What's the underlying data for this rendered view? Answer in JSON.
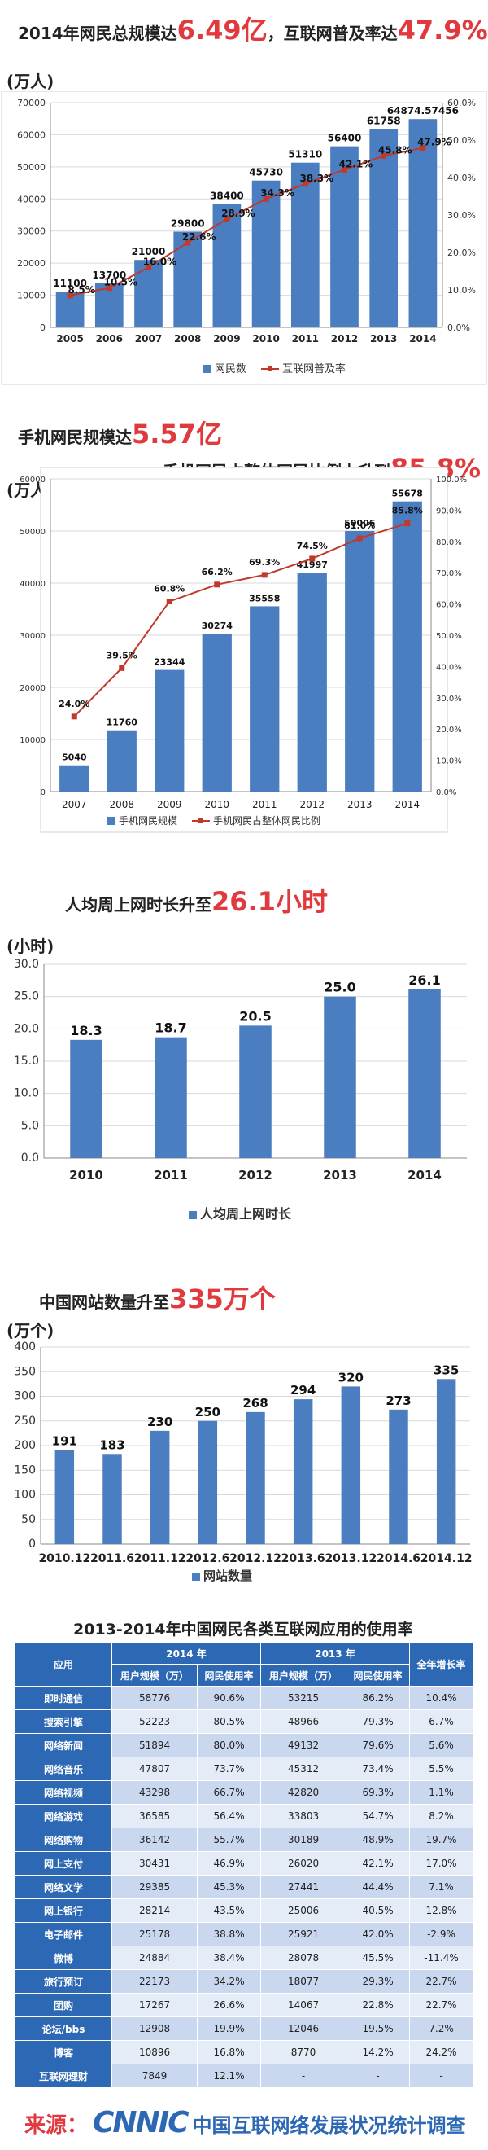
{
  "sections": [
    {
      "title_prefix": "2014年网民总规模达",
      "title_hl1": "6.49亿",
      "title_mid": "，互联网普及率达",
      "title_hl2": "47.9%",
      "unit": "(万人)"
    },
    {
      "title_prefix": "手机网民规模达",
      "title_hl1": "5.57亿",
      "subtitle_prefix": "手机网民占整体网民比例上升到",
      "subtitle_hl": "85.8%",
      "unit": "(万人)"
    },
    {
      "title_prefix": "人均周上网时长升至",
      "title_hl1": "26.1小时",
      "unit": "(小时)"
    },
    {
      "title_prefix": "中国网站数量升至",
      "title_hl1": "335万个",
      "unit": "(万个)"
    }
  ],
  "chart_data": [
    {
      "type": "bar+line",
      "categories": [
        "2005",
        "2006",
        "2007",
        "2008",
        "2009",
        "2010",
        "2011",
        "2012",
        "2013",
        "2014"
      ],
      "series": [
        {
          "name": "网民数",
          "type": "bar",
          "values": [
            11100,
            13700,
            21000,
            29800,
            38400,
            45730,
            51310,
            56400,
            61758,
            64874.57456
          ],
          "labels": [
            "11100",
            "13700",
            "21000",
            "29800",
            "38400",
            "45730",
            "51310",
            "56400",
            "61758",
            "64874.57456"
          ]
        },
        {
          "name": "互联网普及率",
          "type": "line",
          "values": [
            8.5,
            10.5,
            16.0,
            22.6,
            28.9,
            34.3,
            38.3,
            42.1,
            45.8,
            47.9
          ],
          "labels": [
            "8.5%",
            "10.5%",
            "16.0%",
            "22.6%",
            "28.9%",
            "34.3%",
            "38.3%",
            "42.1%",
            "45.8%",
            "47.9%"
          ]
        }
      ],
      "yticks": [
        "0",
        "10000",
        "20000",
        "30000",
        "40000",
        "50000",
        "60000",
        "70000"
      ],
      "ylim": [
        0,
        70000
      ],
      "y2ticks": [
        "0.0%",
        "10.0%",
        "20.0%",
        "30.0%",
        "40.0%",
        "50.0%",
        "60.0%"
      ],
      "y2lim": [
        0,
        60
      ],
      "grid": true,
      "legend_position": "bottom"
    },
    {
      "type": "bar+line",
      "categories": [
        "2007",
        "2008",
        "2009",
        "2010",
        "2011",
        "2012",
        "2013",
        "2014"
      ],
      "series": [
        {
          "name": "手机网民规模",
          "type": "bar",
          "values": [
            5040,
            11760,
            23344,
            30274,
            35558,
            41997,
            50006,
            55678
          ],
          "labels": [
            "5040",
            "11760",
            "23344",
            "30274",
            "35558",
            "41997",
            "50006",
            "55678"
          ]
        },
        {
          "name": "手机网民占整体网民比例",
          "type": "line",
          "values": [
            24.0,
            39.5,
            60.8,
            66.2,
            69.3,
            74.5,
            81.0,
            85.8
          ],
          "labels": [
            "24.0%",
            "39.5%",
            "60.8%",
            "66.2%",
            "69.3%",
            "74.5%",
            "81.0%",
            "85.8%"
          ]
        }
      ],
      "yticks": [
        "0",
        "10000",
        "20000",
        "30000",
        "40000",
        "50000",
        "60000"
      ],
      "ylim": [
        0,
        60000
      ],
      "y2ticks": [
        "0.0%",
        "10.0%",
        "20.0%",
        "30.0%",
        "40.0%",
        "50.0%",
        "60.0%",
        "70.0%",
        "80.0%",
        "90.0%",
        "100.0%"
      ],
      "y2lim": [
        0,
        100
      ],
      "grid": true,
      "legend_position": "bottom"
    },
    {
      "type": "bar",
      "categories": [
        "2010",
        "2011",
        "2012",
        "2013",
        "2014"
      ],
      "series": [
        {
          "name": "人均周上网时长",
          "type": "bar",
          "values": [
            18.3,
            18.7,
            20.5,
            25.0,
            26.1
          ],
          "labels": [
            "18.3",
            "18.7",
            "20.5",
            "25.0",
            "26.1"
          ]
        }
      ],
      "yticks": [
        "0.0",
        "5.0",
        "10.0",
        "15.0",
        "20.0",
        "25.0",
        "30.0"
      ],
      "ylim": [
        0,
        30
      ],
      "grid": true,
      "legend_position": "bottom"
    },
    {
      "type": "bar",
      "categories": [
        "2010.12",
        "2011.6",
        "2011.12",
        "2012.6",
        "2012.12",
        "2013.6",
        "2013.12",
        "2014.6",
        "2014.12"
      ],
      "series": [
        {
          "name": "网站数量",
          "type": "bar",
          "values": [
            191,
            183,
            230,
            250,
            268,
            294,
            320,
            273,
            335
          ],
          "labels": [
            "191",
            "183",
            "230",
            "250",
            "268",
            "294",
            "320",
            "273",
            "335"
          ]
        }
      ],
      "yticks": [
        "0",
        "50",
        "100",
        "150",
        "200",
        "250",
        "300",
        "350",
        "400"
      ],
      "ylim": [
        0,
        400
      ],
      "grid": true,
      "legend_position": "bottom"
    },
    {
      "type": "table",
      "title": "2013-2014年中国网民各类互联网应用的使用率",
      "group_headers": [
        "2014 年",
        "2013 年"
      ],
      "columns": [
        "应用",
        "用户规模（万）",
        "网民使用率",
        "用户规模（万）",
        "网民使用率",
        "全年增长率"
      ],
      "rows": [
        [
          "即时通信",
          "58776",
          "90.6%",
          "53215",
          "86.2%",
          "10.4%"
        ],
        [
          "搜索引擎",
          "52223",
          "80.5%",
          "48966",
          "79.3%",
          "6.7%"
        ],
        [
          "网络新闻",
          "51894",
          "80.0%",
          "49132",
          "79.6%",
          "5.6%"
        ],
        [
          "网络音乐",
          "47807",
          "73.7%",
          "45312",
          "73.4%",
          "5.5%"
        ],
        [
          "网络视频",
          "43298",
          "66.7%",
          "42820",
          "69.3%",
          "1.1%"
        ],
        [
          "网络游戏",
          "36585",
          "56.4%",
          "33803",
          "54.7%",
          "8.2%"
        ],
        [
          "网络购物",
          "36142",
          "55.7%",
          "30189",
          "48.9%",
          "19.7%"
        ],
        [
          "网上支付",
          "30431",
          "46.9%",
          "26020",
          "42.1%",
          "17.0%"
        ],
        [
          "网络文学",
          "29385",
          "45.3%",
          "27441",
          "44.4%",
          "7.1%"
        ],
        [
          "网上银行",
          "28214",
          "43.5%",
          "25006",
          "40.5%",
          "12.8%"
        ],
        [
          "电子邮件",
          "25178",
          "38.8%",
          "25921",
          "42.0%",
          "-2.9%"
        ],
        [
          "微博",
          "24884",
          "38.4%",
          "28078",
          "45.5%",
          "-11.4%"
        ],
        [
          "旅行预订",
          "22173",
          "34.2%",
          "18077",
          "29.3%",
          "22.7%"
        ],
        [
          "团购",
          "17267",
          "26.6%",
          "14067",
          "22.8%",
          "22.7%"
        ],
        [
          "论坛/bbs",
          "12908",
          "19.9%",
          "12046",
          "19.5%",
          "7.2%"
        ],
        [
          "博客",
          "10896",
          "16.8%",
          "8770",
          "14.2%",
          "24.2%"
        ],
        [
          "互联网理财",
          "7849",
          "12.1%",
          "-",
          "-",
          "-"
        ]
      ]
    }
  ],
  "source": {
    "label": "来源：",
    "logo_text": "CNNIC",
    "org": "中国互联网络发展状况统计调查"
  },
  "colors": {
    "bar": "#4a7ec0",
    "line": "#c0392b",
    "highlight": "#e0393e",
    "table_header": "#2d68b4"
  }
}
